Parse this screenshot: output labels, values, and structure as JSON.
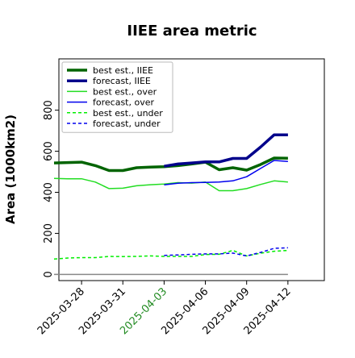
{
  "chart_data": {
    "type": "line",
    "title": "IIEE area metric",
    "xlabel": "",
    "ylabel": "Area (1000km2)",
    "ylim": [
      -30,
      1050
    ],
    "y_ticks": [
      0,
      200,
      400,
      600,
      800
    ],
    "x_ticks": [
      "2025-03-28",
      "2025-03-31",
      "2025-04-03",
      "2025-04-06",
      "2025-04-09",
      "2025-04-12"
    ],
    "highlighted_tick": "2025-04-03",
    "highlight_color": "#228B22",
    "grid": false,
    "legend_position": "top-left",
    "x": [
      "2025-03-26",
      "2025-03-27",
      "2025-03-28",
      "2025-03-29",
      "2025-03-30",
      "2025-03-31",
      "2025-04-01",
      "2025-04-02",
      "2025-04-03",
      "2025-04-04",
      "2025-04-05",
      "2025-04-06",
      "2025-04-07",
      "2025-04-08",
      "2025-04-09",
      "2025-04-10",
      "2025-04-11",
      "2025-04-12"
    ],
    "series": [
      {
        "name": "best est., IIEE",
        "color": "#006400",
        "style": "solid",
        "width": "thick",
        "values": [
          543,
          545,
          547,
          530,
          506,
          506,
          520,
          523,
          525,
          530,
          538,
          547,
          510,
          520,
          508,
          535,
          567,
          566
        ]
      },
      {
        "name": "forecast, IIEE",
        "color": "#00008B",
        "style": "solid",
        "width": "thick",
        "values": [
          null,
          null,
          null,
          null,
          null,
          null,
          null,
          null,
          527,
          538,
          543,
          548,
          548,
          565,
          565,
          620,
          680,
          680
        ]
      },
      {
        "name": "best est., over",
        "color": "#22DD22",
        "style": "solid",
        "width": "thin",
        "values": [
          468,
          466,
          466,
          450,
          418,
          420,
          432,
          437,
          440,
          447,
          445,
          450,
          408,
          408,
          418,
          438,
          456,
          450
        ]
      },
      {
        "name": "forecast, over",
        "color": "#0000EE",
        "style": "solid",
        "width": "thin",
        "values": [
          null,
          null,
          null,
          null,
          null,
          null,
          null,
          null,
          436,
          444,
          447,
          448,
          450,
          456,
          476,
          516,
          555,
          550
        ]
      },
      {
        "name": "best est., under",
        "color": "#00EE00",
        "style": "dashed",
        "width": "thin",
        "values": [
          75,
          80,
          82,
          82,
          88,
          87,
          88,
          90,
          88,
          88,
          88,
          97,
          98,
          117,
          90,
          103,
          113,
          117
        ]
      },
      {
        "name": "forecast, under",
        "color": "#0000EE",
        "style": "dashed",
        "width": "thin",
        "values": [
          null,
          null,
          null,
          null,
          null,
          null,
          null,
          null,
          93,
          95,
          98,
          100,
          100,
          104,
          90,
          107,
          127,
          130
        ]
      },
      {
        "color": "#888888",
        "style": "solid",
        "width": "thin",
        "values": [
          0,
          0,
          0,
          0,
          0,
          0,
          0,
          0,
          0,
          0,
          0,
          0,
          0,
          0,
          0,
          0,
          0,
          0
        ]
      }
    ]
  }
}
